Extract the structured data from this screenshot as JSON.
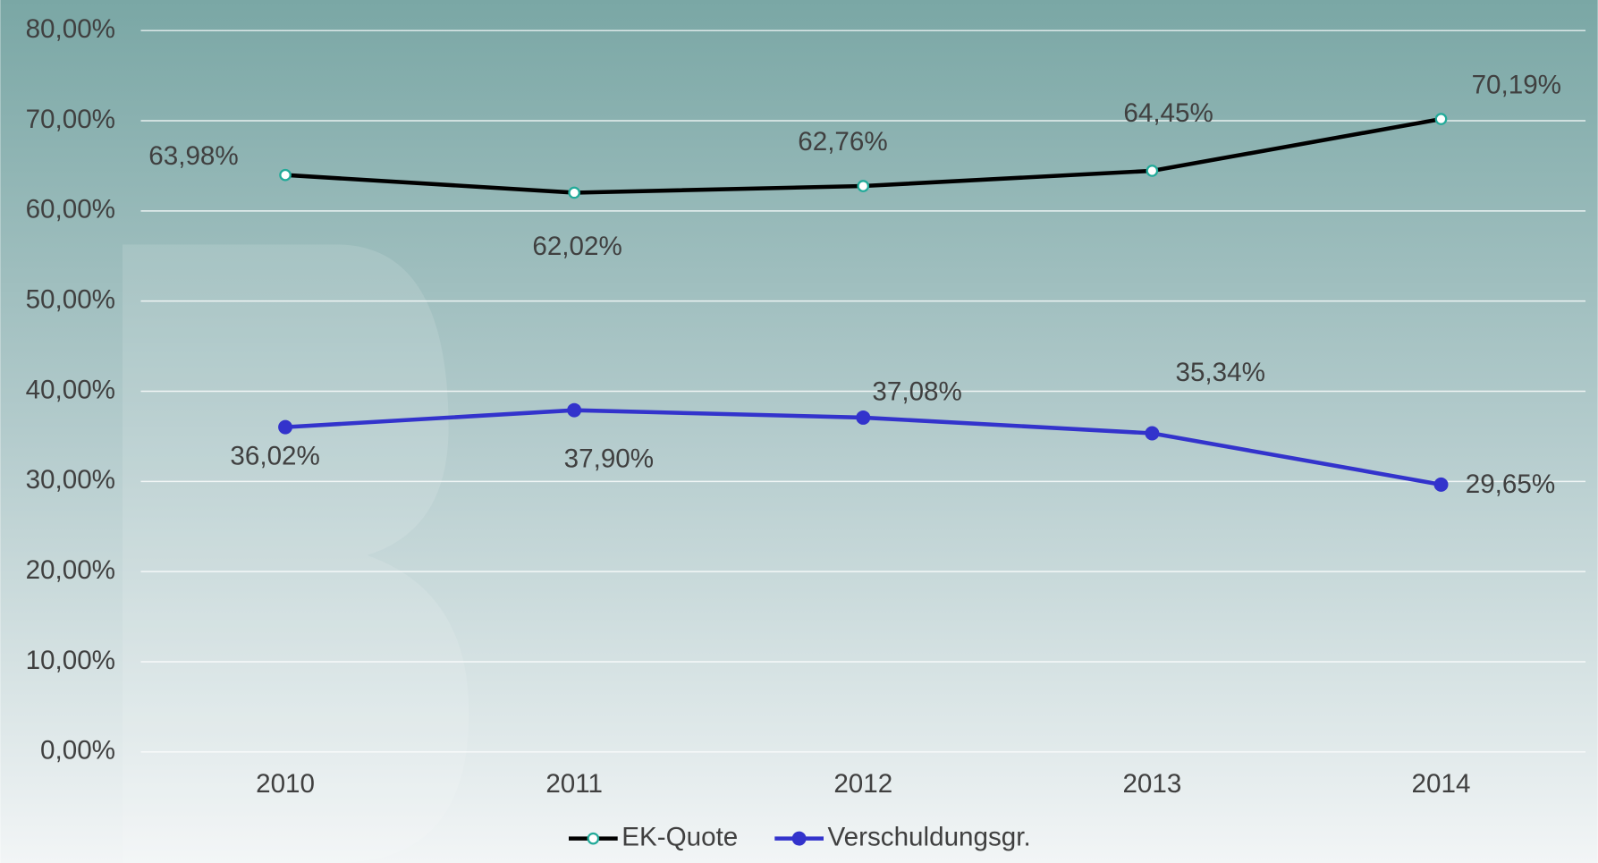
{
  "chart_data": {
    "type": "line",
    "categories": [
      "2010",
      "2011",
      "2012",
      "2013",
      "2014"
    ],
    "series": [
      {
        "name": "EK-Quote",
        "color": "#000000",
        "values": [
          63.98,
          62.02,
          62.76,
          64.45,
          70.19
        ],
        "value_labels": [
          "63,98%",
          "62,02%",
          "62,76%",
          "64,45%",
          "70,19%"
        ]
      },
      {
        "name": "Verschuldungsgr.",
        "color": "#3333cc",
        "values": [
          36.02,
          37.9,
          37.08,
          35.34,
          29.65
        ],
        "value_labels": [
          "36,02%",
          "37,90%",
          "37,08%",
          "35,34%",
          "29,65%"
        ]
      }
    ],
    "ylim": [
      0,
      80
    ],
    "yticks": [
      {
        "value": 0,
        "label": "0,00%"
      },
      {
        "value": 10,
        "label": "10,00%"
      },
      {
        "value": 20,
        "label": "20,00%"
      },
      {
        "value": 30,
        "label": "30,00%"
      },
      {
        "value": 40,
        "label": "40,00%"
      },
      {
        "value": 50,
        "label": "50,00%"
      },
      {
        "value": 60,
        "label": "60,00%"
      },
      {
        "value": 70,
        "label": "70,00%"
      },
      {
        "value": 80,
        "label": "80,00%"
      }
    ],
    "grid": true,
    "legend": "bottom"
  }
}
